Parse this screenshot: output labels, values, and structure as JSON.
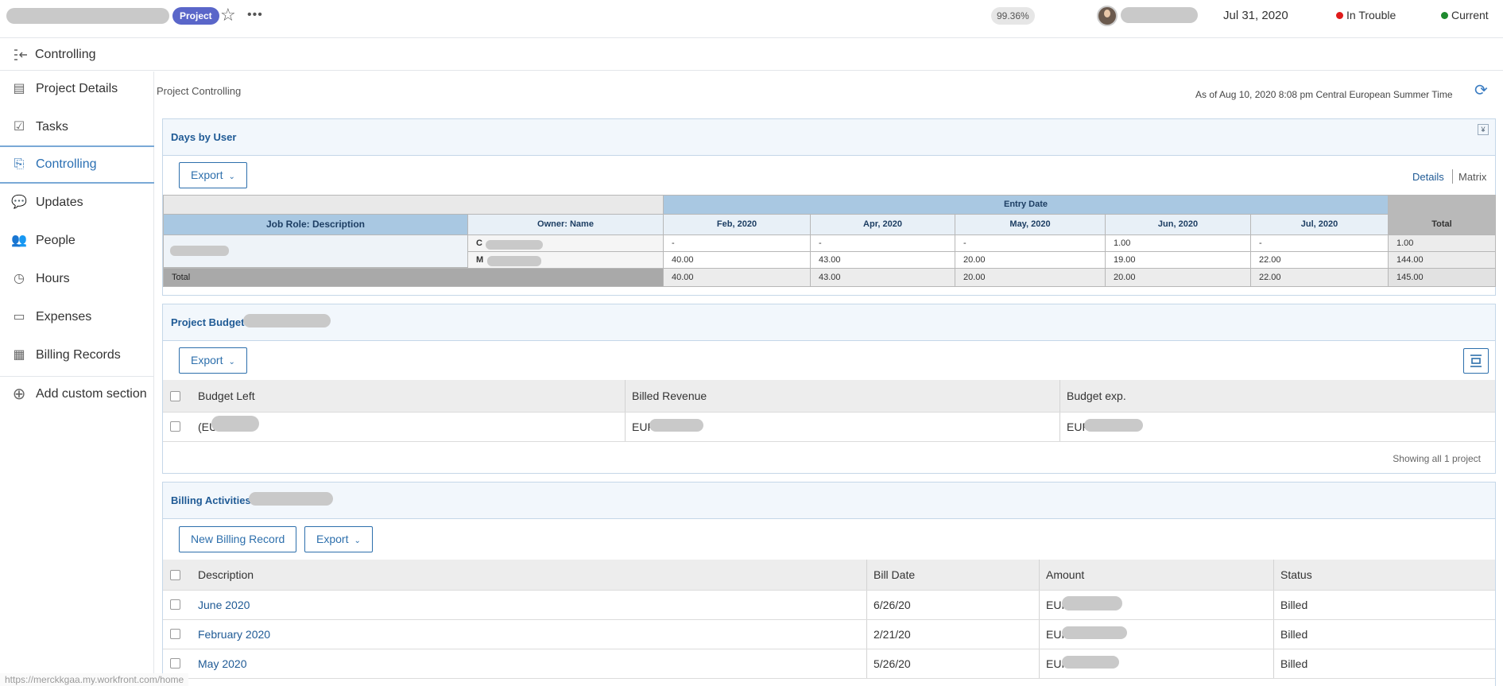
{
  "topbar": {
    "project_badge": "Project",
    "completion": "99.36%",
    "date": "Jul 31, 2020",
    "status_condition": "In Trouble",
    "status_condition_color": "#e01b1b",
    "status_progress": "Current",
    "status_progress_color": "#1e8a2e"
  },
  "section_header": {
    "title": "Controlling"
  },
  "sidebar": {
    "items": [
      {
        "label": "Project Details",
        "icon": "document-icon"
      },
      {
        "label": "Tasks",
        "icon": "clipboard-check-icon"
      },
      {
        "label": "Controlling",
        "icon": "controlling-icon"
      },
      {
        "label": "Updates",
        "icon": "chat-bubble-icon"
      },
      {
        "label": "People",
        "icon": "people-icon"
      },
      {
        "label": "Hours",
        "icon": "clock-icon"
      },
      {
        "label": "Expenses",
        "icon": "money-icon"
      },
      {
        "label": "Billing Records",
        "icon": "billing-icon"
      }
    ],
    "add_custom": "Add custom section"
  },
  "main": {
    "breadcrumb": "Project Controlling",
    "as_of": "As of  Aug 10, 2020 8:08 pm Central European Summer Time"
  },
  "days_by_user": {
    "title": "Days by User",
    "export": "Export",
    "view_details": "Details",
    "view_matrix": "Matrix",
    "group_header": "Entry Date",
    "col_role": "Job Role: Description",
    "col_owner": "Owner: Name",
    "months": [
      "Feb, 2020",
      "Apr, 2020",
      "May, 2020",
      "Jun, 2020",
      "Jul, 2020"
    ],
    "col_total": "Total",
    "rows": [
      {
        "owner": "C",
        "values": [
          "-",
          "-",
          "-",
          "1.00",
          "-"
        ],
        "total": "1.00"
      },
      {
        "owner": "M",
        "values": [
          "40.00",
          "43.00",
          "20.00",
          "19.00",
          "22.00"
        ],
        "total": "144.00"
      }
    ],
    "total_label": "Total",
    "totals": [
      "40.00",
      "43.00",
      "20.00",
      "20.00",
      "22.00"
    ],
    "grand_total": "145.00"
  },
  "project_budget": {
    "title": "Project Budget",
    "export": "Export",
    "columns": [
      "Budget Left",
      "Billed Revenue",
      "Budget exp."
    ],
    "row": [
      "(EU",
      "EUR",
      "EUR"
    ],
    "footer": "Showing all 1 project"
  },
  "billing": {
    "title": "Billing Activities",
    "new_record": "New Billing Record",
    "export": "Export",
    "columns": [
      "Description",
      "Bill Date",
      "Amount",
      "Status"
    ],
    "rows": [
      {
        "description": "June 2020",
        "date": "6/26/20",
        "amount": "EUR",
        "status": "Billed"
      },
      {
        "description": "February 2020",
        "date": "2/21/20",
        "amount": "EUR",
        "status": "Billed"
      },
      {
        "description": "May 2020",
        "date": "5/26/20",
        "amount": "EUR",
        "status": "Billed"
      }
    ]
  },
  "status_bar": {
    "url": "https://merckkgaa.my.workfront.com/home"
  }
}
